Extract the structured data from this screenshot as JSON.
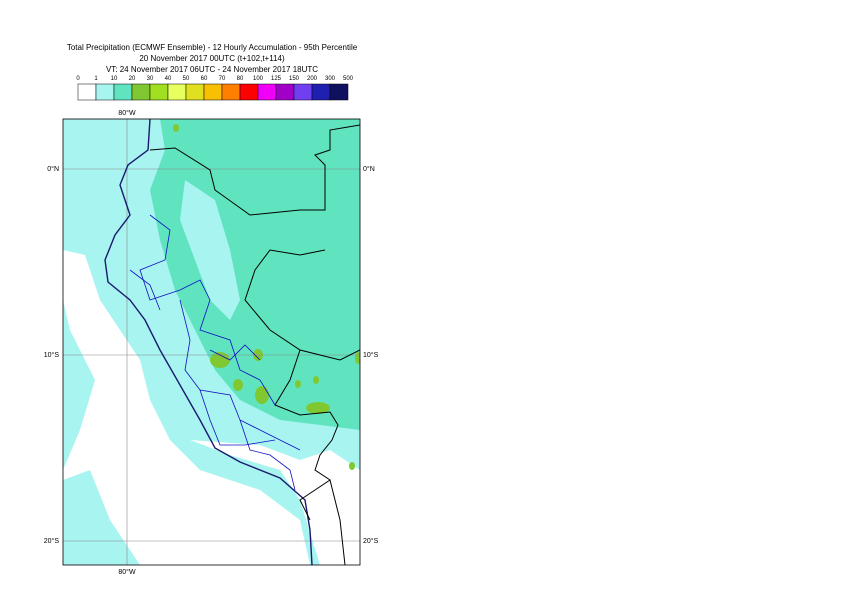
{
  "header": {
    "lines": [
      "Total Precipitation (ECMWF Ensemble) - 12 Hourly Accumulation - 95th Percentile",
      "20 November 2017 00UTC (t+102,t+114)",
      "VT: 24 November 2017 06UTC - 24 November 2017 18UTC"
    ]
  },
  "legend": {
    "labels": [
      "0",
      "1",
      "10",
      "20",
      "30",
      "40",
      "50",
      "60",
      "70",
      "80",
      "100",
      "125",
      "150",
      "200",
      "300",
      "500"
    ],
    "colors": [
      "#ffffff",
      "#a8f4f0",
      "#60e4c0",
      "#80c832",
      "#a0e020",
      "#e8ff60",
      "#e0e020",
      "#f8c000",
      "#ff8000",
      "#ff0000",
      "#f000f8",
      "#a000c8",
      "#7040f0",
      "#2020b0",
      "#101060"
    ]
  },
  "map": {
    "lon_labels": [
      "80°W"
    ],
    "lat_labels": [
      "0°N",
      "10°S",
      "20°S"
    ]
  }
}
